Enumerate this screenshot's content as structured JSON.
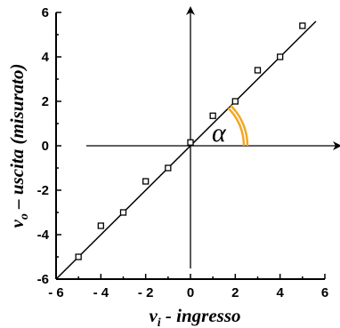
{
  "chart_data": {
    "type": "scatter",
    "x_axis_label": {
      "main": "v",
      "sub": "i",
      "rest": " - ingresso"
    },
    "y_axis_label": {
      "main": "v",
      "sub": "o",
      "rest": " – uscita (misurato)"
    },
    "xlim": [
      -6,
      6
    ],
    "ylim": [
      -6,
      6
    ],
    "x_ticks": [
      "- 6",
      "- 4",
      "- 2",
      "0",
      "2",
      "4",
      "6"
    ],
    "y_ticks": [
      "6",
      "4",
      "2",
      "0",
      "-2",
      "-4",
      "-6"
    ],
    "tick_values": [
      -6,
      -4,
      -2,
      0,
      2,
      4,
      6
    ],
    "points": [
      {
        "x": -5.0,
        "y": -5.0
      },
      {
        "x": -4.0,
        "y": -3.6
      },
      {
        "x": -3.0,
        "y": -3.0
      },
      {
        "x": -2.0,
        "y": -1.6
      },
      {
        "x": -1.0,
        "y": -1.0
      },
      {
        "x": 0.0,
        "y": 0.15
      },
      {
        "x": 1.0,
        "y": 1.35
      },
      {
        "x": 2.0,
        "y": 2.0
      },
      {
        "x": 3.0,
        "y": 3.4
      },
      {
        "x": 4.0,
        "y": 4.0
      },
      {
        "x": 5.0,
        "y": 5.4
      }
    ],
    "fit_line": {
      "slope": 1.0,
      "intercept": 0.0,
      "x_range": [
        -6,
        5.6
      ]
    },
    "angle_label": "α",
    "angle_arc_color": "#f5a623"
  }
}
